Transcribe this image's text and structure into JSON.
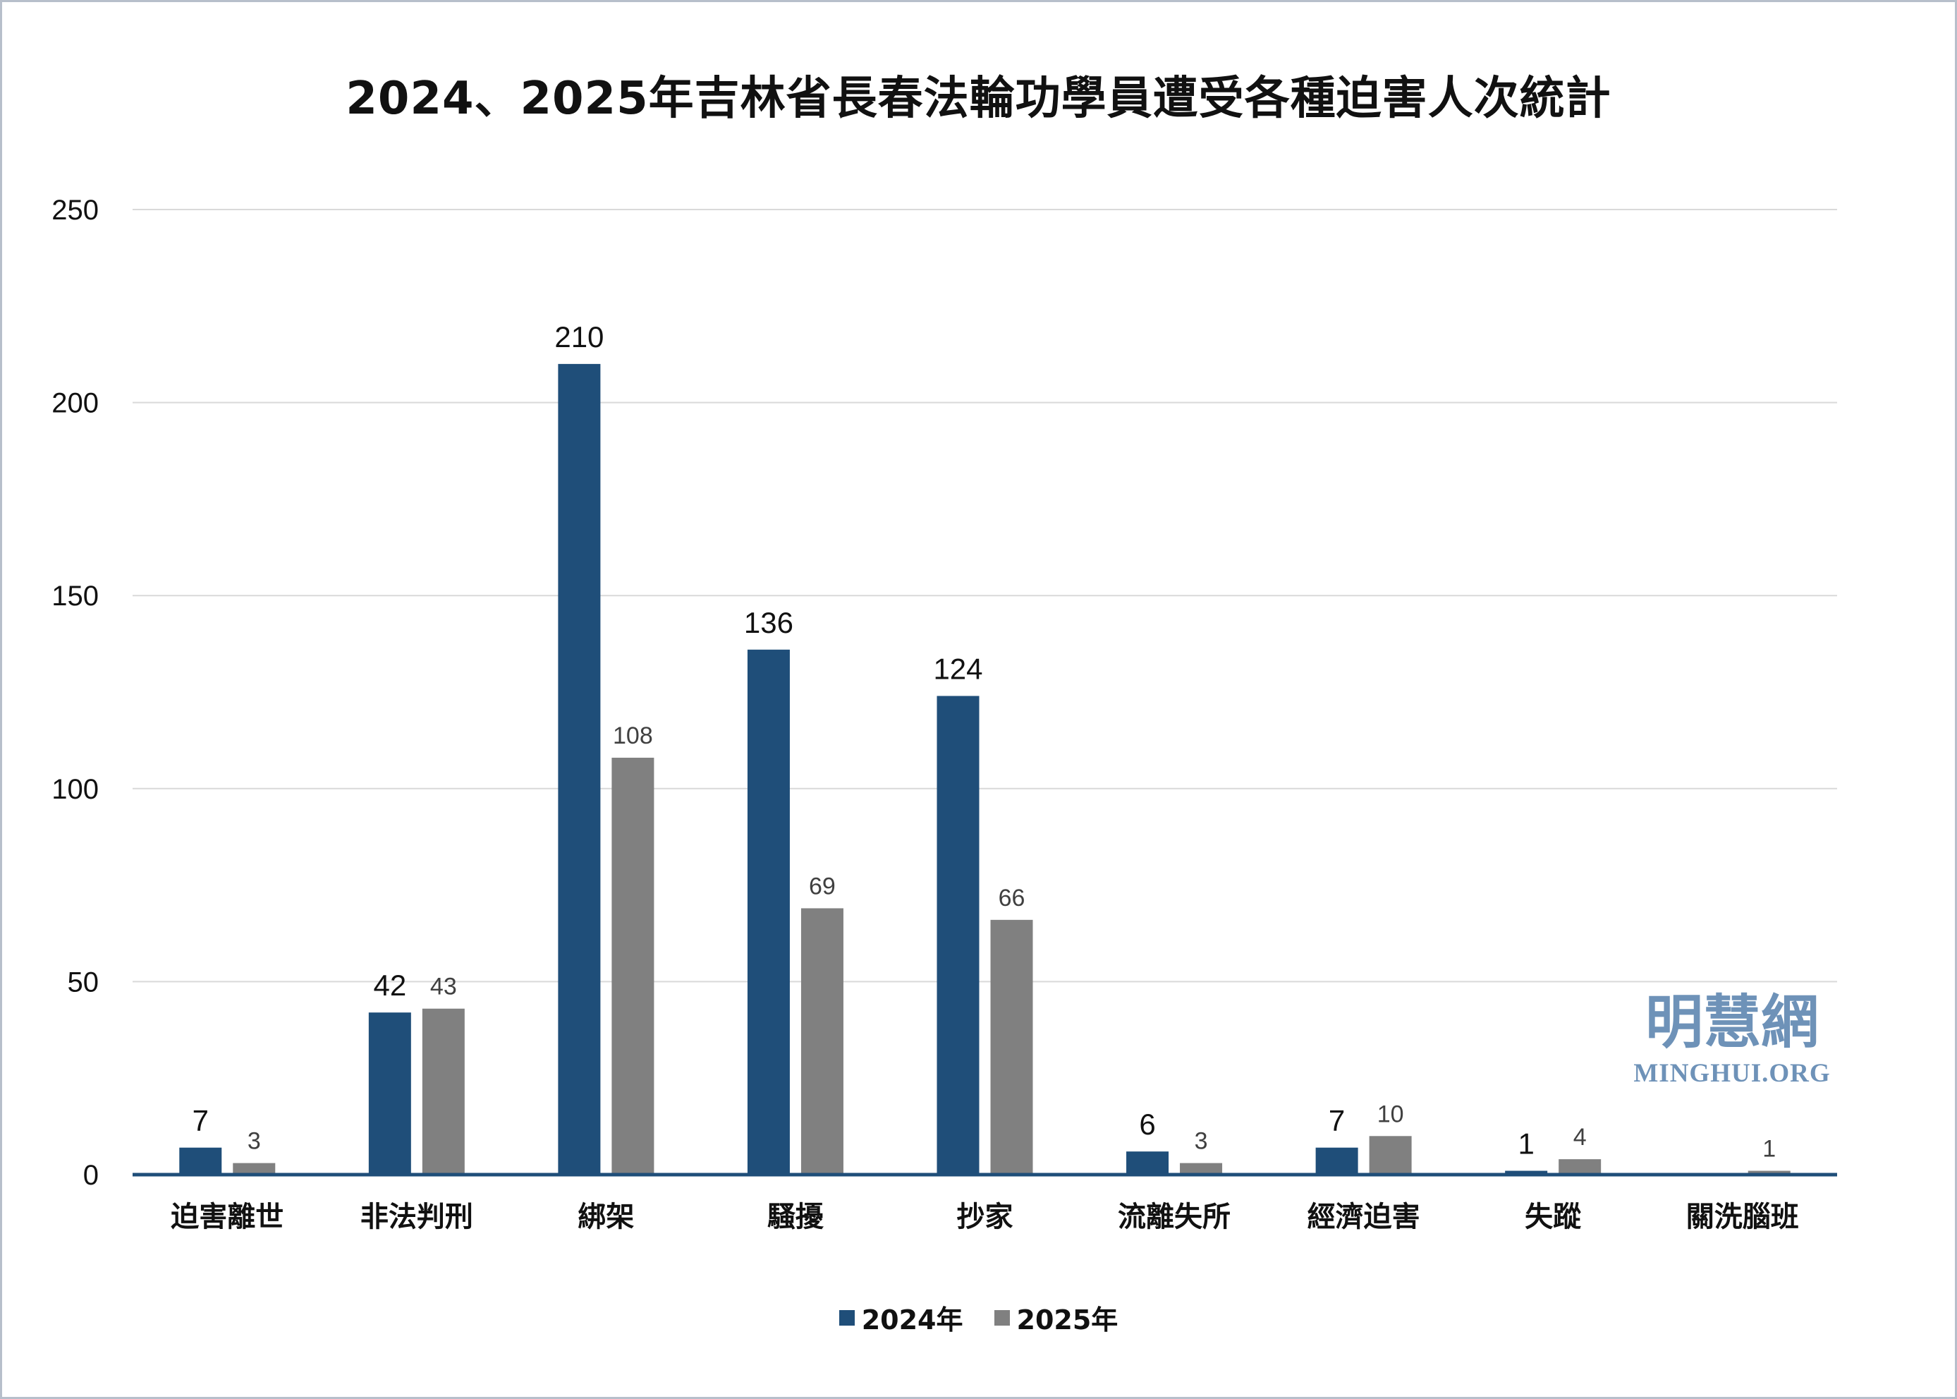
{
  "chart_data": {
    "type": "bar",
    "title": "2024、2025年吉林省長春法輪功學員遭受各種迫害人次統計",
    "categories": [
      "迫害離世",
      "非法判刑",
      "綁架",
      "騷擾",
      "抄家",
      "流離失所",
      "經濟迫害",
      "失蹤",
      "關洗腦班"
    ],
    "series": [
      {
        "name": "2024年",
        "color": "#1f4e79",
        "values": [
          7,
          42,
          210,
          136,
          124,
          6,
          7,
          1,
          0
        ],
        "labels": [
          "7",
          "42",
          "210",
          "136",
          "124",
          "6",
          "7",
          "1",
          ""
        ]
      },
      {
        "name": "2025年",
        "color": "#808080",
        "values": [
          3,
          43,
          108,
          69,
          66,
          3,
          10,
          4,
          1
        ],
        "labels": [
          "3",
          "43",
          "108",
          "69",
          "66",
          "3",
          "10",
          "4",
          "1"
        ]
      }
    ],
    "ylim": [
      0,
      250
    ],
    "yticks": [
      0,
      50,
      100,
      150,
      200,
      250
    ],
    "grid": true,
    "legend_position": "bottom"
  },
  "watermark": {
    "cn": "明慧網",
    "en": "MINGHUI.ORG"
  }
}
